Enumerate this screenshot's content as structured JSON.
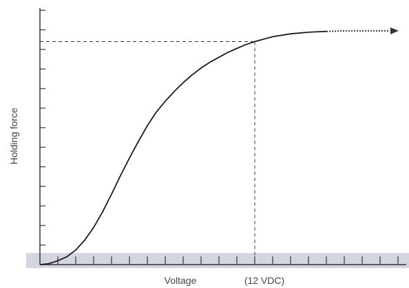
{
  "chart_data": {
    "type": "line",
    "title": "",
    "xlabel": "Voltage",
    "ylabel": "Holding force",
    "annotation": "(12 VDC)",
    "x_units": "VDC",
    "xlim": [
      0,
      20
    ],
    "ylim": [
      0,
      13
    ],
    "x_tick_count": 20,
    "y_tick_count": 13,
    "grid": false,
    "legend": "none",
    "series": [
      {
        "x": [
          0,
          0.5,
          1,
          1.5,
          2,
          2.5,
          3,
          3.5,
          4,
          4.5,
          5,
          5.5,
          6,
          6.5,
          7,
          7.5,
          8,
          8.5,
          9,
          9.5,
          10,
          10.5,
          11,
          11.5,
          12,
          13,
          14,
          15,
          16,
          17,
          18,
          19,
          19.5
        ],
        "values": [
          0,
          0.05,
          0.2,
          0.4,
          0.75,
          1.25,
          1.9,
          2.7,
          3.6,
          4.55,
          5.45,
          6.3,
          7.1,
          7.8,
          8.35,
          8.85,
          9.3,
          9.7,
          10.05,
          10.35,
          10.6,
          10.85,
          11.05,
          11.25,
          11.4,
          11.65,
          11.8,
          11.88,
          11.92,
          11.95,
          11.95,
          11.95,
          11.95
        ]
      }
    ],
    "reference": {
      "x": 12,
      "y": 11.4
    },
    "colors": {
      "curve": "#1a1a1a",
      "axis": "#333333",
      "band": "#cfd3df",
      "dashed": "#333333"
    }
  }
}
